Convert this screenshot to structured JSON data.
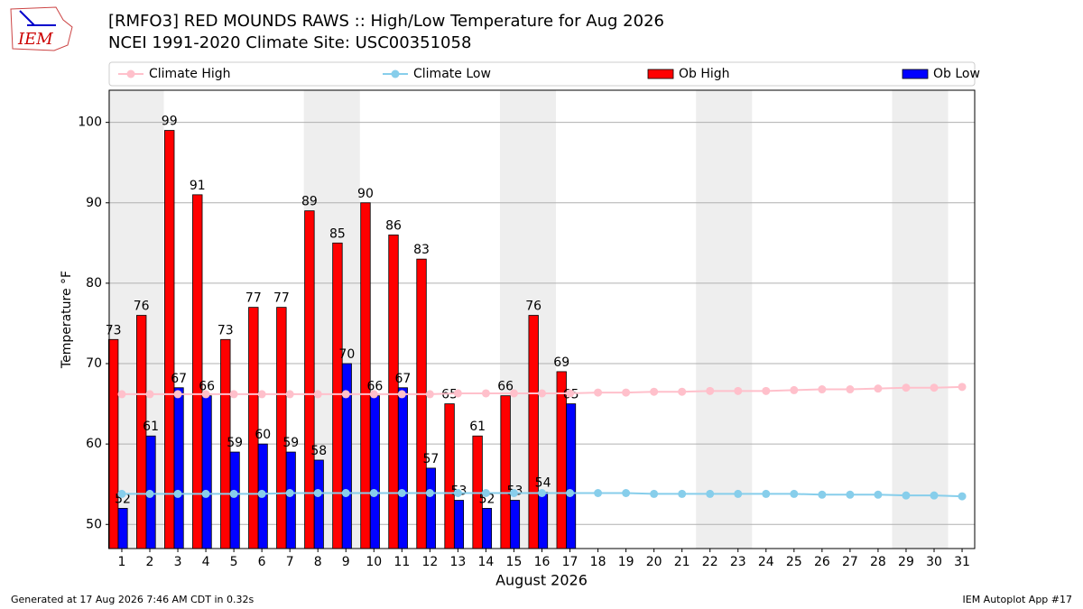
{
  "chart_data": {
    "type": "bar",
    "title": "[RMFO3] RED MOUNDS RAWS :: High/Low Temperature for Aug 2026",
    "subtitle": "NCEI 1991-2020 Climate Site: USC00351058",
    "logo_text": "IEM",
    "ylabel": "Temperature °F",
    "xlabel": "August 2026",
    "footer_left": "Generated at 17 Aug 2026 7:46 AM CDT in 0.32s",
    "footer_right": "IEM Autoplot App #17",
    "x": [
      1,
      2,
      3,
      4,
      5,
      6,
      7,
      8,
      9,
      10,
      11,
      12,
      13,
      14,
      15,
      16,
      17,
      18,
      19,
      20,
      21,
      22,
      23,
      24,
      25,
      26,
      27,
      28,
      29,
      30,
      31
    ],
    "xlim": [
      0.55,
      31.45
    ],
    "xticks": [
      1,
      2,
      3,
      4,
      5,
      6,
      7,
      8,
      9,
      10,
      11,
      12,
      13,
      14,
      15,
      16,
      17,
      18,
      19,
      20,
      21,
      22,
      23,
      24,
      25,
      26,
      27,
      28,
      29,
      30,
      31
    ],
    "ylim": [
      47,
      104
    ],
    "yticks": [
      50,
      60,
      70,
      80,
      90,
      100
    ],
    "grid": true,
    "shaded_spans": [
      [
        0.5,
        2.5
      ],
      [
        7.5,
        9.5
      ],
      [
        14.5,
        16.5
      ],
      [
        21.5,
        23.5
      ],
      [
        28.5,
        30.5
      ]
    ],
    "series": [
      {
        "name": "Climate High",
        "type": "line",
        "color": "#ffc0cb",
        "values": [
          66.2,
          66.2,
          66.2,
          66.2,
          66.2,
          66.2,
          66.2,
          66.2,
          66.2,
          66.2,
          66.2,
          66.2,
          66.3,
          66.3,
          66.3,
          66.3,
          66.3,
          66.4,
          66.4,
          66.5,
          66.5,
          66.6,
          66.6,
          66.6,
          66.7,
          66.8,
          66.8,
          66.9,
          67.0,
          67.0,
          67.1
        ]
      },
      {
        "name": "Climate Low",
        "type": "line",
        "color": "#87ceeb",
        "values": [
          53.8,
          53.8,
          53.8,
          53.8,
          53.8,
          53.8,
          53.9,
          53.9,
          53.9,
          53.9,
          53.9,
          53.9,
          53.9,
          53.9,
          53.9,
          53.9,
          53.9,
          53.9,
          53.9,
          53.8,
          53.8,
          53.8,
          53.8,
          53.8,
          53.8,
          53.7,
          53.7,
          53.7,
          53.6,
          53.6,
          53.5
        ]
      },
      {
        "name": "Ob High",
        "type": "bar",
        "color": "#ff0000",
        "values": [
          73,
          76,
          99,
          91,
          73,
          77,
          77,
          89,
          85,
          90,
          86,
          83,
          65,
          61,
          66,
          76,
          69,
          null,
          null,
          null,
          null,
          null,
          null,
          null,
          null,
          null,
          null,
          null,
          null,
          null,
          null
        ]
      },
      {
        "name": "Ob Low",
        "type": "bar",
        "color": "#0000ff",
        "values": [
          52,
          61,
          67,
          66,
          59,
          60,
          59,
          58,
          70,
          66,
          67,
          57,
          53,
          52,
          53,
          54,
          65,
          null,
          null,
          null,
          null,
          null,
          null,
          null,
          null,
          null,
          null,
          null,
          null,
          null,
          null
        ]
      }
    ]
  }
}
